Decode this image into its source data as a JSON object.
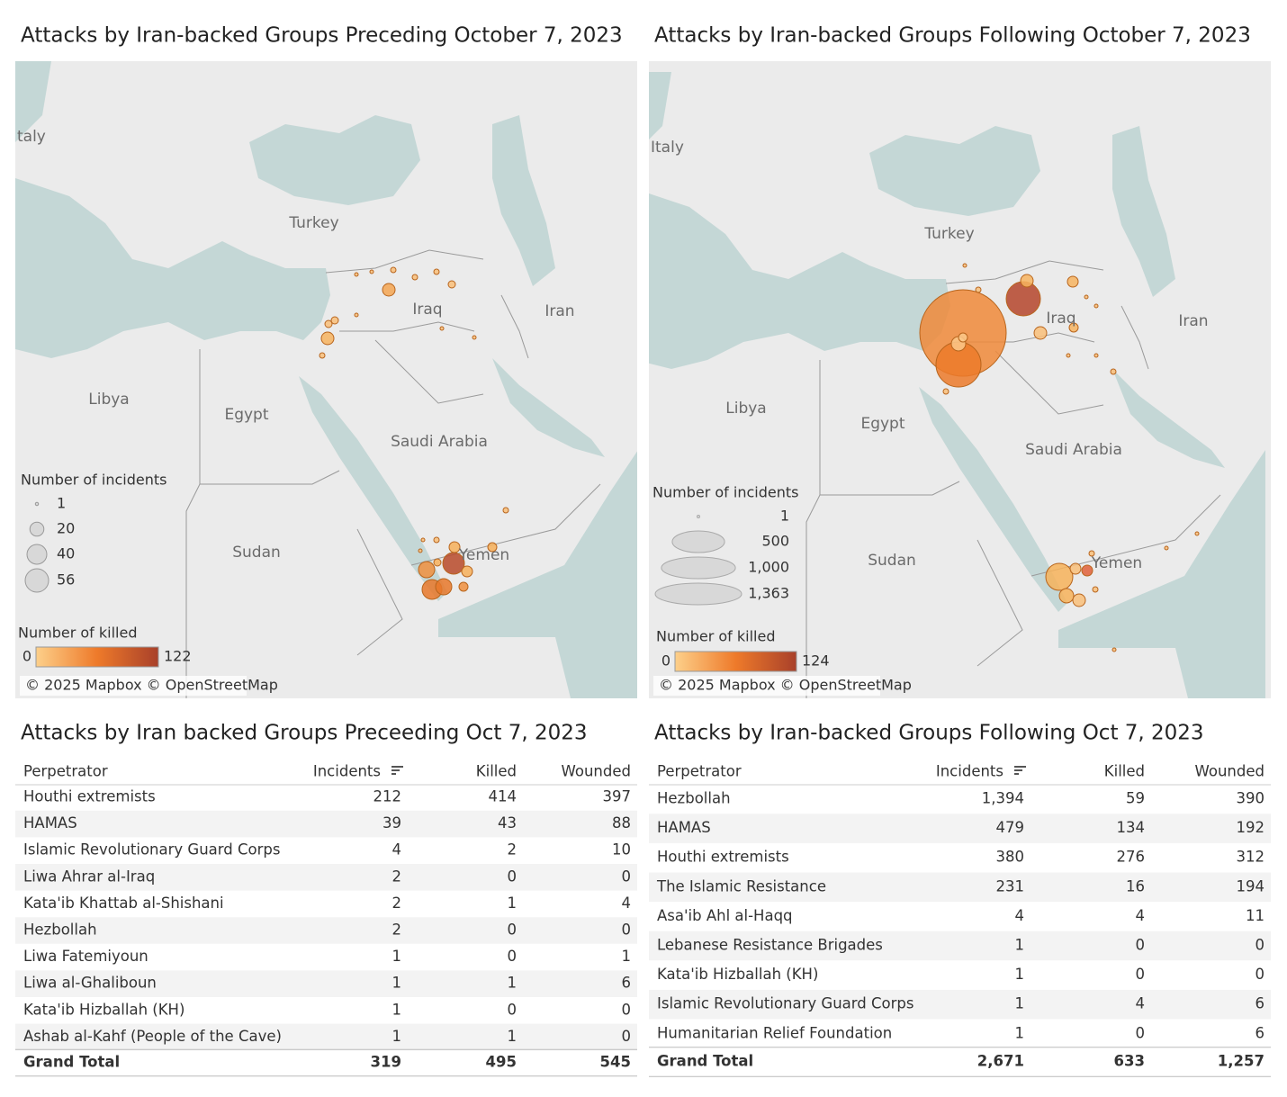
{
  "left": {
    "map": {
      "title": "Attacks by Iran-backed Groups Preceding October 7, 2023",
      "places": [
        "taly",
        "Turkey",
        "Iraq",
        "Iran",
        "Libya",
        "Egypt",
        "Saudi Arabia",
        "Sudan",
        "Yemen"
      ],
      "legend": {
        "size_title": "Number of incidents",
        "sizes": [
          1,
          20,
          40,
          56
        ],
        "color_title": "Number of killed",
        "color_range": [
          0,
          122
        ]
      },
      "attribution": "© 2025 Mapbox © OpenStreetMap"
    },
    "table": {
      "title": "Attacks by Iran backed Groups Preceeding Oct 7, 2023",
      "columns": [
        "Perpetrator",
        "Incidents",
        "Killed",
        "Wounded"
      ],
      "rows": [
        [
          "Houthi extremists",
          "212",
          "414",
          "397"
        ],
        [
          "HAMAS",
          "39",
          "43",
          "88"
        ],
        [
          "Islamic Revolutionary Guard Corps",
          "4",
          "2",
          "10"
        ],
        [
          "Liwa Ahrar al-Iraq",
          "2",
          "0",
          "0"
        ],
        [
          "Kata'ib Khattab al-Shishani",
          "2",
          "1",
          "4"
        ],
        [
          "Hezbollah",
          "2",
          "0",
          "0"
        ],
        [
          "Liwa Fatemiyoun",
          "1",
          "0",
          "1"
        ],
        [
          "Liwa al-Ghaliboun",
          "1",
          "1",
          "6"
        ],
        [
          "Kata'ib Hizballah (KH)",
          "1",
          "0",
          "0"
        ],
        [
          "Ashab al-Kahf (People of the Cave)",
          "1",
          "1",
          "0"
        ]
      ],
      "total": [
        "Grand Total",
        "319",
        "495",
        "545"
      ]
    }
  },
  "right": {
    "map": {
      "title": "Attacks by Iran-backed Groups Following October 7, 2023",
      "places": [
        "Italy",
        "Turkey",
        "Iraq",
        "Iran",
        "Libya",
        "Egypt",
        "Saudi Arabia",
        "Sudan",
        "Yemen"
      ],
      "legend": {
        "size_title": "Number of incidents",
        "sizes": [
          1,
          500,
          {
            "value": 1000,
            "label": "1,000"
          },
          {
            "value": 1363,
            "label": "1,363"
          }
        ],
        "color_title": "Number of killed",
        "color_range": [
          0,
          124
        ]
      },
      "attribution": "© 2025 Mapbox © OpenStreetMap"
    },
    "table": {
      "title": "Attacks by Iran-backed Groups Following Oct 7, 2023",
      "columns": [
        "Perpetrator",
        "Incidents",
        "Killed",
        "Wounded"
      ],
      "rows": [
        [
          "Hezbollah",
          "1,394",
          "59",
          "390"
        ],
        [
          "HAMAS",
          "479",
          "134",
          "192"
        ],
        [
          "Houthi extremists",
          "380",
          "276",
          "312"
        ],
        [
          "The Islamic Resistance",
          "231",
          "16",
          "194"
        ],
        [
          "Asa'ib Ahl al-Haqq",
          "4",
          "4",
          "11"
        ],
        [
          "Lebanese Resistance Brigades",
          "1",
          "0",
          "0"
        ],
        [
          "Kata'ib Hizballah (KH)",
          "1",
          "0",
          "0"
        ],
        [
          "Islamic Revolutionary Guard Corps",
          "1",
          "4",
          "6"
        ],
        [
          "Humanitarian Relief Foundation",
          "1",
          "0",
          "6"
        ]
      ],
      "total": [
        "Grand Total",
        "2,671",
        "633",
        "1,257"
      ]
    }
  }
}
